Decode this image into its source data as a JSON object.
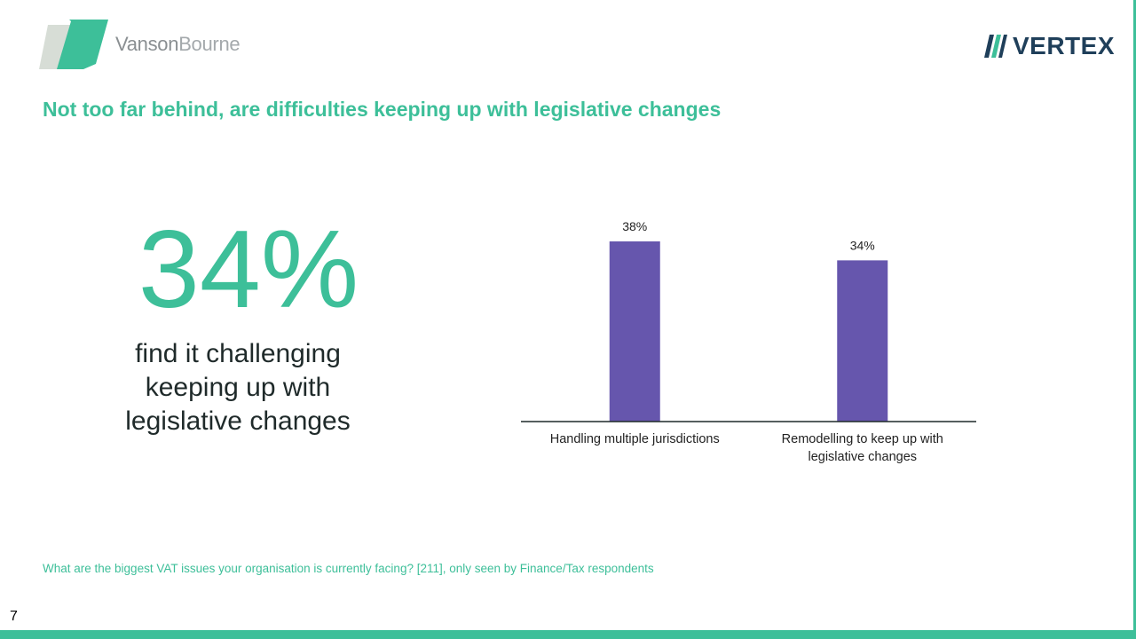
{
  "brand": {
    "left_logo_text_dark": "Vanson",
    "left_logo_text_light": "Bourne",
    "right_logo_text": "VERTEX",
    "accent_color": "#3dbf99",
    "bar_color": "#6656ad"
  },
  "slide": {
    "title": "Not too far behind, are difficulties keeping up with legislative changes",
    "big_stat": "34%",
    "stat_description": "find it challenging keeping up with legislative changes",
    "footnote": "What are the biggest VAT issues your organisation is currently facing? [211], only seen by Finance/Tax respondents",
    "page_number": "7"
  },
  "chart_data": {
    "type": "bar",
    "categories": [
      [
        "Handling multiple jurisdictions"
      ],
      [
        "Remodelling to keep up with",
        "legislative changes"
      ]
    ],
    "values": [
      38,
      34
    ],
    "data_labels": [
      "38%",
      "34%"
    ],
    "ylim": [
      0,
      38
    ],
    "grid": false,
    "legend": "none"
  }
}
